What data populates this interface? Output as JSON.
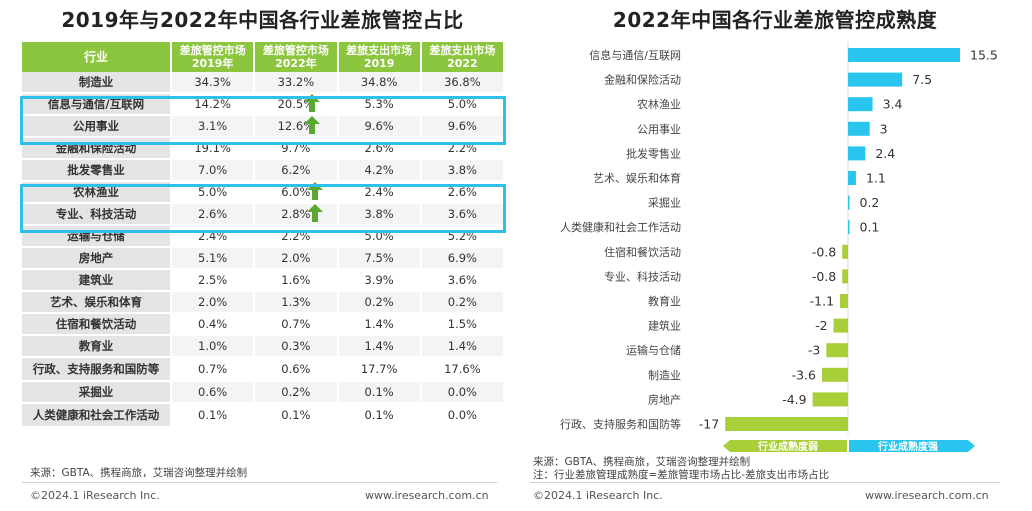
{
  "left": {
    "title": "2019年与2022年中国各行业差旅管控占比",
    "headers": [
      "行业",
      "差旅管控市场\n2019年",
      "差旅管控市场\n2022年",
      "差旅支出市场\n2019",
      "差旅支出市场\n2022"
    ],
    "rows": [
      {
        "industry": "制造业",
        "v1": "34.3%",
        "v2": "33.2%",
        "v3": "34.8%",
        "v4": "36.8%",
        "up": false
      },
      {
        "industry": "信息与通信/互联网",
        "v1": "14.2%",
        "v2": "20.5%",
        "v3": "5.3%",
        "v4": "5.0%",
        "up": true
      },
      {
        "industry": "公用事业",
        "v1": "3.1%",
        "v2": "12.6%",
        "v3": "9.6%",
        "v4": "9.6%",
        "up": true
      },
      {
        "industry": "金融和保险活动",
        "v1": "19.1%",
        "v2": "9.7%",
        "v3": "2.6%",
        "v4": "2.2%",
        "up": false
      },
      {
        "industry": "批发零售业",
        "v1": "7.0%",
        "v2": "6.2%",
        "v3": "4.2%",
        "v4": "3.8%",
        "up": false
      },
      {
        "industry": "农林渔业",
        "v1": "5.0%",
        "v2": "6.0%",
        "v3": "2.4%",
        "v4": "2.6%",
        "up": true
      },
      {
        "industry": "专业、科技活动",
        "v1": "2.6%",
        "v2": "2.8%",
        "v3": "3.8%",
        "v4": "3.6%",
        "up": true
      },
      {
        "industry": "运输与仓储",
        "v1": "2.4%",
        "v2": "2.2%",
        "v3": "5.0%",
        "v4": "5.2%",
        "up": false
      },
      {
        "industry": "房地产",
        "v1": "5.1%",
        "v2": "2.0%",
        "v3": "7.5%",
        "v4": "6.9%",
        "up": false
      },
      {
        "industry": "建筑业",
        "v1": "2.5%",
        "v2": "1.6%",
        "v3": "3.9%",
        "v4": "3.6%",
        "up": false
      },
      {
        "industry": "艺术、娱乐和体育",
        "v1": "2.0%",
        "v2": "1.3%",
        "v3": "0.2%",
        "v4": "0.2%",
        "up": false
      },
      {
        "industry": "住宿和餐饮活动",
        "v1": "0.4%",
        "v2": "0.7%",
        "v3": "1.4%",
        "v4": "1.5%",
        "up": false
      },
      {
        "industry": "教育业",
        "v1": "1.0%",
        "v2": "0.3%",
        "v3": "1.4%",
        "v4": "1.4%",
        "up": false
      },
      {
        "industry": "行政、支持服务和国防等",
        "v1": "0.7%",
        "v2": "0.6%",
        "v3": "17.7%",
        "v4": "17.6%",
        "up": false
      },
      {
        "industry": "采掘业",
        "v1": "0.6%",
        "v2": "0.2%",
        "v3": "0.1%",
        "v4": "0.0%",
        "up": false
      },
      {
        "industry": "人类健康和社会工作活动",
        "v1": "0.1%",
        "v2": "0.1%",
        "v3": "0.1%",
        "v4": "0.0%",
        "up": false
      }
    ],
    "source": "来源：GBTA、携程商旅，艾瑞咨询整理并绘制",
    "copyright": "©2024.1 iResearch Inc.",
    "website": "www.iresearch.com.cn"
  },
  "right": {
    "title": "2022年中国各行业差旅管控成熟度",
    "source": "来源：GBTA、携程商旅，艾瑞咨询整理并绘制",
    "note": "注：行业差旅管理成熟度=差旅管理市场占比-差旅支出市场占比",
    "copyright": "©2024.1 iResearch Inc.",
    "website": "www.iresearch.com.cn"
  },
  "colors": {
    "header_green": "#8cc63f",
    "highlight_blue": "#2ec0e8",
    "bar_positive": "#29c5ef",
    "bar_negative": "#a9cf38",
    "arrow_green": "#5aa832"
  },
  "chart_data": {
    "type": "bar",
    "orientation": "horizontal",
    "title": "2022年中国各行业差旅管控成熟度",
    "categories": [
      "信息与通信/互联网",
      "金融和保险活动",
      "农林渔业",
      "公用事业",
      "批发零售业",
      "艺术、娱乐和体育",
      "采掘业",
      "人类健康和社会工作活动",
      "住宿和餐饮活动",
      "专业、科技活动",
      "教育业",
      "建筑业",
      "运输与仓储",
      "制造业",
      "房地产",
      "行政、支持服务和国防等"
    ],
    "values": [
      15.5,
      7.5,
      3.4,
      3,
      2.4,
      1.1,
      0.2,
      0.1,
      -0.8,
      -0.8,
      -1.1,
      -2,
      -3,
      -3.6,
      -4.9,
      -17
    ],
    "value_labels": [
      "15.5",
      "7.5",
      "3.4",
      "3",
      "2.4",
      "1.1",
      "0.2",
      "0.1",
      "-0.8",
      "-0.8",
      "-1.1",
      "-2",
      "-3",
      "-3.6",
      "-4.9",
      "-17"
    ],
    "xlim": [
      -17,
      15.5
    ],
    "legend": {
      "negative": "行业成熟度弱",
      "positive": "行业成熟度强"
    }
  }
}
